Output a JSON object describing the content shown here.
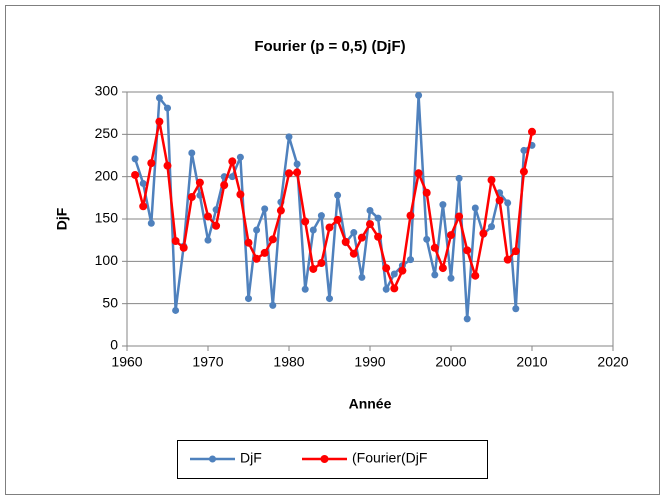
{
  "chart_data": {
    "type": "line",
    "title": "Fourier (p  = 0,5) (DjF)",
    "x_label": "Année",
    "y_label": "DjF",
    "x": [
      1961,
      1962,
      1963,
      1964,
      1965,
      1966,
      1967,
      1968,
      1969,
      1970,
      1971,
      1972,
      1973,
      1974,
      1975,
      1976,
      1977,
      1978,
      1979,
      1980,
      1981,
      1982,
      1983,
      1984,
      1985,
      1986,
      1987,
      1988,
      1989,
      1990,
      1991,
      1992,
      1993,
      1994,
      1995,
      1996,
      1997,
      1998,
      1999,
      2000,
      2001,
      2002,
      2003,
      2004,
      2005,
      2006,
      2007,
      2008,
      2009,
      2010
    ],
    "series": [
      {
        "name": "DjF",
        "color": "#4f81bd",
        "values": [
          221,
          192,
          145,
          293,
          281,
          42,
          118,
          228,
          178,
          125,
          161,
          200,
          200,
          223,
          56,
          137,
          162,
          48,
          170,
          247,
          215,
          67,
          137,
          154,
          56,
          178,
          122,
          134,
          81,
          160,
          151,
          67,
          85,
          95,
          102,
          296,
          126,
          84,
          167,
          80,
          198,
          32,
          163,
          132,
          141,
          181,
          169,
          44,
          231,
          237
        ]
      },
      {
        "name": "(Fourier(DjF",
        "color": "#ff0000",
        "values": [
          202,
          165,
          216,
          265,
          213,
          124,
          116,
          176,
          193,
          153,
          142,
          190,
          218,
          179,
          122,
          103,
          110,
          126,
          160,
          204,
          205,
          147,
          91,
          98,
          140,
          149,
          123,
          109,
          128,
          144,
          129,
          92,
          68,
          89,
          154,
          204,
          181,
          116,
          92,
          131,
          153,
          113,
          83,
          133,
          196,
          172,
          102,
          112,
          206,
          253
        ]
      }
    ],
    "xlim": [
      1960,
      2020
    ],
    "xticks": [
      1960,
      1970,
      1980,
      1990,
      2000,
      2010,
      2020
    ],
    "ylim": [
      0,
      300
    ],
    "yticks": [
      0,
      50,
      100,
      150,
      200,
      250,
      300
    ],
    "grid": true,
    "legend": "bottom"
  }
}
